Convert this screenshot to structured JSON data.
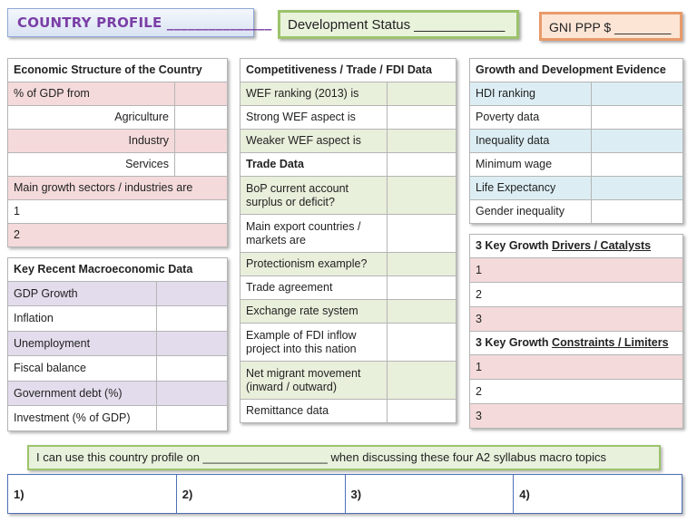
{
  "header": {
    "title": "COUNTRY PROFILE",
    "title_blank": "_______________",
    "development_status": "Development Status ____________",
    "gni": "GNI PPP $ ________"
  },
  "economic_structure": {
    "heading": "Economic Structure of the Country",
    "rows": [
      "% of GDP from",
      "Agriculture",
      "Industry",
      "Services",
      "Main growth sectors / industries are",
      "1",
      "2"
    ]
  },
  "macro": {
    "heading": "Key Recent Macroeconomic Data",
    "rows": [
      "GDP Growth",
      "Inflation",
      "Unemployment",
      "Fiscal balance",
      "Government debt (%)",
      "Investment (% of GDP)"
    ]
  },
  "competitiveness": {
    "heading": "Competitiveness / Trade / FDI Data",
    "rows": [
      "WEF ranking (2013) is",
      "Strong WEF aspect is",
      "Weaker WEF aspect is",
      "Trade Data",
      "BoP current account surplus or deficit?",
      "Main export countries / markets are",
      "Protectionism example?",
      "Trade agreement",
      "Exchange rate system",
      "Example of FDI inflow project into this nation",
      "Net migrant movement (inward / outward)",
      "Remittance data"
    ]
  },
  "growth": {
    "heading": "Growth and Development Evidence",
    "rows": [
      "HDI ranking",
      "Poverty data",
      "Inequality data",
      "Minimum wage",
      "Life Expectancy",
      "Gender inequality"
    ]
  },
  "drivers": {
    "heading_prefix": "3 Key Growth ",
    "heading_ul": "Drivers / Catalysts",
    "rows": [
      "1",
      "2",
      "3"
    ]
  },
  "constraints": {
    "heading_prefix": "3 Key Growth ",
    "heading_ul": "Constraints / Limiters",
    "rows": [
      "1",
      "2",
      "3"
    ]
  },
  "banner": "I can use this country profile on ___________________ when discussing these four A2 syllabus macro topics",
  "topics": [
    "1)",
    "2)",
    "3)",
    "4)"
  ]
}
